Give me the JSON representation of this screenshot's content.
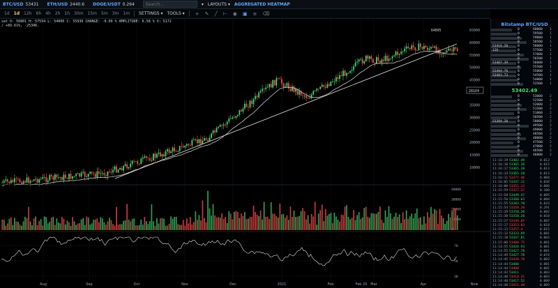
{
  "topbar": {
    "tickers": [
      {
        "symbol": "BTC/USD",
        "price": "53431"
      },
      {
        "symbol": "ETH/USD",
        "price": "2440.6"
      },
      {
        "symbol": "DOGE/USDT",
        "price": "0.264"
      }
    ],
    "search_placeholder": "Search...",
    "settings_label": "SETTINGS ▾",
    "tools_label": "TOOLS ▾",
    "layouts_label": "LAYOUTS ▾",
    "heatmap_label": "AGGREGATED HEATMAP"
  },
  "timeframes": [
    "1d",
    "1d",
    "12h",
    "6h",
    "4h",
    "2h",
    "1h",
    "30m",
    "15m",
    "5m",
    "3m",
    "1m"
  ],
  "active_timeframe_index": 1,
  "ohlc": {
    "line1": "sat  O: 56801  H: 57554  L: 54000  C: 55930  CHANGE: -0.09 %  AMPLITUDE: 6.58 %  V: 5172",
    "line2": "/ +89.61%, -25346."
  },
  "price_axis": [
    "65000",
    "60000",
    "55000",
    "50000",
    "45000",
    "40000",
    "35000",
    "30000",
    "25000",
    "20000",
    "15000",
    "10000"
  ],
  "price_marker": "28164",
  "peak_label": "64895",
  "volume_axis": [
    "40000",
    "30000",
    "20000",
    "10000",
    "0"
  ],
  "osc_axis": [
    "70",
    "50",
    "30"
  ],
  "time_axis": [
    "Aug",
    "Sep",
    "Oct",
    "Nov",
    "Dec",
    "2021",
    "Feb",
    "Feb 20",
    "Mar",
    "Apr",
    "Now"
  ],
  "book": {
    "title": "Bitstamp BTC/USD",
    "asks": [
      {
        "label": "",
        "qty": "0",
        "level": "60000",
        "edge": "1"
      },
      {
        "label": "",
        "qty": "0",
        "level": "59500",
        "edge": "1"
      },
      {
        "label": "",
        "qty": "0",
        "level": "59000",
        "edge": "1"
      },
      {
        "label": "",
        "qty": "0",
        "level": "58500",
        "edge": "1"
      },
      {
        "label": "53416.20",
        "qty": "0",
        "level": "58000",
        "edge": "1"
      },
      {
        "label": "126",
        "qty": "0",
        "level": "57500",
        "edge": "1"
      },
      {
        "label": "",
        "qty": "0",
        "level": "57000",
        "edge": "1"
      },
      {
        "label": "",
        "qty": "0",
        "level": "56500",
        "edge": "1"
      },
      {
        "label": "53407.39",
        "qty": "0",
        "level": "56000",
        "edge": "1"
      },
      {
        "label": "",
        "qty": "0",
        "level": "55500",
        "edge": "1"
      },
      {
        "label": "53404.76",
        "qty": "0",
        "level": "55000",
        "edge": "1"
      },
      {
        "label": "53403.73",
        "qty": "0",
        "level": "54500",
        "edge": "1"
      },
      {
        "label": "",
        "qty": "0",
        "level": "54000",
        "edge": "1"
      },
      {
        "label": "",
        "qty": "0",
        "level": "53500",
        "edge": "1"
      }
    ],
    "mid_price": "53402.49",
    "bids": [
      {
        "label": "",
        "qty": "0",
        "level": "53000",
        "edge": "2"
      },
      {
        "label": "",
        "qty": "0",
        "level": "52500",
        "edge": "2"
      },
      {
        "label": "",
        "qty": "0",
        "level": "52000",
        "edge": "2"
      },
      {
        "label": "",
        "qty": "0",
        "level": "51500",
        "edge": "2"
      },
      {
        "label": "",
        "qty": "0",
        "level": "51000",
        "edge": "2"
      },
      {
        "label": "",
        "qty": "0",
        "level": "50500",
        "edge": "2"
      },
      {
        "label": "53384.20",
        "qty": "0",
        "level": "50000",
        "edge": "2"
      },
      {
        "label": "",
        "qty": "0",
        "level": "49500",
        "edge": "2"
      },
      {
        "label": "",
        "qty": "0",
        "level": "49000",
        "edge": "2"
      },
      {
        "label": "",
        "qty": "0",
        "level": "48500",
        "edge": "2"
      },
      {
        "label": "",
        "qty": "0",
        "level": "48000",
        "edge": "2"
      },
      {
        "label": "",
        "qty": "0",
        "level": "47500",
        "edge": "2"
      },
      {
        "label": "",
        "qty": "0",
        "level": "47000",
        "edge": "2"
      },
      {
        "label": "",
        "qty": "0",
        "level": "46500",
        "edge": "2"
      },
      {
        "label": "",
        "qty": "0",
        "level": "46000",
        "edge": "2"
      }
    ],
    "trades": [
      {
        "time": "11:16:19",
        "price": "53402.49",
        "side": "up",
        "qty": "0.012"
      },
      {
        "time": "11:16:18",
        "price": "53365.20",
        "side": "up",
        "qty": "0.015"
      },
      {
        "time": "11:16:17",
        "price": "53365.20",
        "side": "up",
        "qty": "0.013"
      },
      {
        "time": "11:16:14",
        "price": "53365.20",
        "side": "up",
        "qty": "0.013"
      },
      {
        "time": "11:16:11",
        "price": "53377.46",
        "side": "dn",
        "qty": "0.004"
      },
      {
        "time": "11:16:05",
        "price": "53347.11",
        "side": "up",
        "qty": "0.036"
      },
      {
        "time": "11:16:00",
        "price": "53351.12",
        "side": "dn",
        "qty": "0.006"
      },
      {
        "time": "11:15:59",
        "price": "53377.37",
        "side": "dn",
        "qty": "0.108"
      },
      {
        "time": "11:15:58",
        "price": "53449.47",
        "side": "up",
        "qty": "0.005"
      },
      {
        "time": "11:15:56",
        "price": "53368.63",
        "side": "up",
        "qty": "0.004"
      },
      {
        "time": "11:15:55",
        "price": "53383.70",
        "side": "up",
        "qty": "0.033"
      },
      {
        "time": "11:15:54",
        "price": "53358.20",
        "side": "dn",
        "qty": "0.291"
      },
      {
        "time": "11:15:39",
        "price": "53358.20",
        "side": "up",
        "qty": "0.002"
      },
      {
        "time": "11:15:30",
        "price": "53358.20",
        "side": "up",
        "qty": "0.010"
      },
      {
        "time": "11:15:27",
        "price": "53349.85",
        "side": "dn",
        "qty": "0.007"
      },
      {
        "time": "11:15:17",
        "price": "53353.83",
        "side": "dn",
        "qty": "0.018"
      },
      {
        "time": "11:15:13",
        "price": "53357.4",
        "side": "dn",
        "qty": "0.015"
      },
      {
        "time": "11:15:12",
        "price": "53333.69",
        "side": "up",
        "qty": "0.001"
      },
      {
        "time": "11:15:10",
        "price": "53347.81",
        "side": "up",
        "qty": "0.003"
      },
      {
        "time": "11:15:06",
        "price": "53400.75",
        "side": "dn",
        "qty": "0.001"
      },
      {
        "time": "11:14:55",
        "price": "53426.93",
        "side": "up",
        "qty": "0.001"
      },
      {
        "time": "11:14:55",
        "price": "53427.78",
        "side": "up",
        "qty": "0.001"
      },
      {
        "time": "11:14:49",
        "price": "53427.78",
        "side": "up",
        "qty": "0.074"
      },
      {
        "time": "11:14:45",
        "price": "53428.70",
        "side": "dn",
        "qty": "0.003"
      },
      {
        "time": "11:14:44",
        "price": "53408",
        "side": "up",
        "qty": "0.001"
      },
      {
        "time": "11:14:44",
        "price": "53408",
        "side": "dn",
        "qty": "0.001"
      },
      {
        "time": "11:14:43",
        "price": "53411",
        "side": "up",
        "qty": "0.003"
      },
      {
        "time": "11:14:40",
        "price": "53418.31",
        "side": "dn",
        "qty": "0.003"
      },
      {
        "time": "11:14:40",
        "price": "53417.52",
        "side": "up",
        "qty": "0.009"
      },
      {
        "time": "11:14:40",
        "price": "53421.40",
        "side": "dn",
        "qty": "0.005"
      }
    ]
  },
  "colors": {
    "up": "#3fe06f",
    "down": "#ff4d4d",
    "accent": "#5fa8ff"
  },
  "icons": [
    "crosshair-icon",
    "pencil-icon",
    "trendline-icon",
    "ruler-icon",
    "eye-icon",
    "camera-icon",
    "layers-icon",
    "trash-icon"
  ]
}
